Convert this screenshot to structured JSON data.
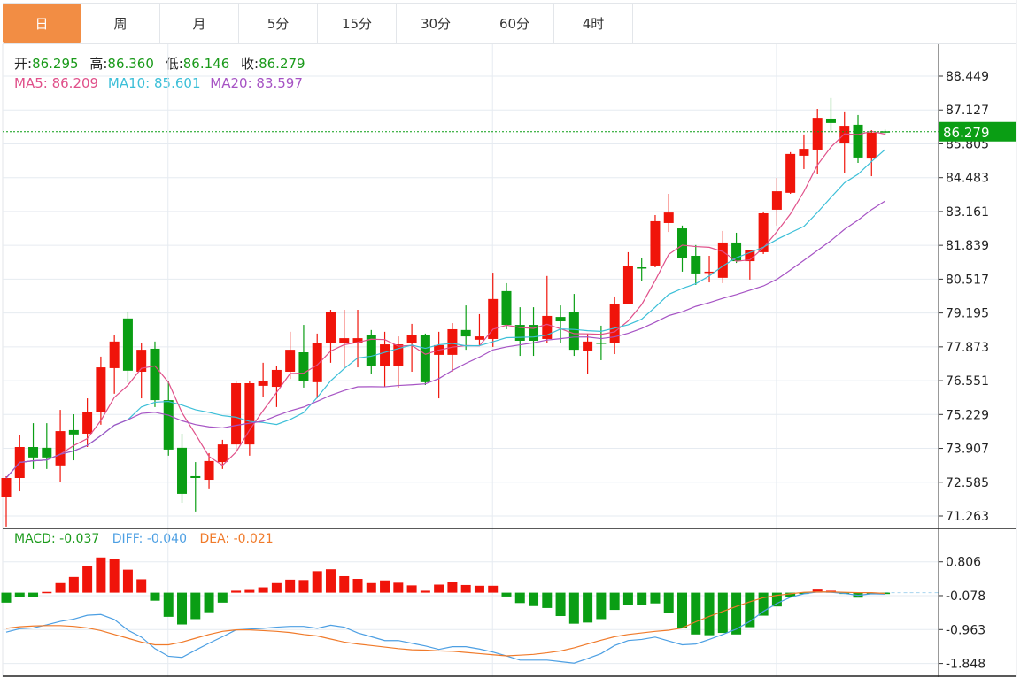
{
  "tabs": [
    {
      "label": "日",
      "active": true
    },
    {
      "label": "周",
      "active": false
    },
    {
      "label": "月",
      "active": false
    },
    {
      "label": "5分",
      "active": false
    },
    {
      "label": "15分",
      "active": false
    },
    {
      "label": "30分",
      "active": false
    },
    {
      "label": "60分",
      "active": false
    },
    {
      "label": "4时",
      "active": false
    }
  ],
  "ohlc_header": {
    "open_label": "开:",
    "open": "86.295",
    "high_label": "高:",
    "high": "86.360",
    "low_label": "低:",
    "low": "86.146",
    "close_label": "收:",
    "close": "86.279"
  },
  "ma_legend": {
    "ma5_label": "MA5:",
    "ma5": "86.209",
    "ma10_label": "MA10:",
    "ma10": "85.601",
    "ma20_label": "MA20:",
    "ma20": "83.597"
  },
  "macd_legend": {
    "macd_label": "MACD:",
    "macd": "-0.037",
    "diff_label": "DIFF:",
    "diff": "-0.040",
    "dea_label": "DEA:",
    "dea": "-0.021"
  },
  "colors": {
    "up": "#f0140a",
    "down": "#0a9e14",
    "ma5": "#e0508a",
    "ma10": "#3cbfd8",
    "ma20": "#a653c4",
    "diff": "#4c9fe3",
    "dea": "#f07a2a",
    "tab_active": "#f28d44",
    "last_price": "#0a9e14"
  },
  "chart_data": [
    {
      "type": "candlestick",
      "y_ticks": [
        "88.449",
        "87.127",
        "85.805",
        "84.483",
        "83.161",
        "81.839",
        "80.517",
        "79.195",
        "77.873",
        "76.551",
        "75.229",
        "73.907",
        "72.585",
        "71.263"
      ],
      "ylim": [
        71.263,
        88.449
      ],
      "grid": true,
      "last_price": "86.279",
      "moving_averages": [
        5,
        10,
        20
      ],
      "ohlc": [
        [
          71.99,
          72.82,
          70.85,
          72.75
        ],
        [
          72.75,
          74.41,
          72.23,
          73.96
        ],
        [
          73.96,
          74.89,
          73.1,
          73.55
        ],
        [
          73.93,
          74.89,
          73.1,
          73.55
        ],
        [
          73.24,
          75.41,
          72.58,
          74.58
        ],
        [
          74.62,
          75.24,
          73.44,
          74.45
        ],
        [
          74.48,
          75.86,
          73.96,
          75.31
        ],
        [
          75.31,
          77.49,
          74.83,
          77.07
        ],
        [
          77.04,
          78.35,
          76.04,
          78.08
        ],
        [
          78.98,
          79.25,
          76.49,
          76.94
        ],
        [
          76.9,
          78.01,
          75.86,
          77.76
        ],
        [
          77.8,
          78.08,
          75.52,
          75.79
        ],
        [
          75.79,
          76.55,
          73.62,
          73.86
        ],
        [
          73.93,
          74.48,
          71.78,
          72.13
        ],
        [
          72.82,
          73.37,
          71.44,
          72.75
        ],
        [
          72.68,
          73.72,
          72.34,
          73.41
        ],
        [
          73.37,
          74.24,
          73.1,
          74.06
        ],
        [
          74.06,
          76.55,
          73.79,
          76.45
        ],
        [
          74.06,
          76.55,
          73.62,
          76.45
        ],
        [
          76.35,
          77.25,
          75.93,
          76.52
        ],
        [
          76.31,
          77.14,
          75.52,
          76.97
        ],
        [
          76.9,
          78.46,
          76.62,
          77.76
        ],
        [
          77.66,
          78.73,
          76.28,
          76.52
        ],
        [
          76.49,
          78.39,
          75.86,
          78.04
        ],
        [
          78.04,
          79.32,
          77.25,
          79.25
        ],
        [
          78.04,
          79.32,
          77.07,
          78.21
        ],
        [
          78.04,
          79.32,
          77.07,
          78.21
        ],
        [
          78.35,
          78.53,
          76.83,
          77.14
        ],
        [
          77.11,
          78.46,
          76.31,
          77.97
        ],
        [
          77.11,
          78.28,
          76.28,
          77.97
        ],
        [
          78.01,
          78.77,
          76.9,
          78.35
        ],
        [
          78.32,
          78.39,
          76.38,
          76.49
        ],
        [
          77.56,
          78.46,
          75.86,
          77.94
        ],
        [
          77.56,
          78.8,
          76.9,
          78.56
        ],
        [
          78.53,
          79.49,
          77.76,
          78.28
        ],
        [
          78.15,
          79.15,
          77.94,
          78.28
        ],
        [
          78.18,
          80.77,
          77.87,
          79.74
        ],
        [
          80.05,
          80.36,
          78.56,
          78.73
        ],
        [
          78.73,
          79.42,
          77.52,
          78.11
        ],
        [
          78.73,
          79.42,
          77.52,
          78.11
        ],
        [
          78.18,
          80.64,
          78.01,
          79.08
        ],
        [
          79.04,
          79.49,
          78.04,
          78.87
        ],
        [
          79.25,
          79.94,
          77.52,
          77.76
        ],
        [
          77.73,
          78.39,
          76.8,
          78.08
        ],
        [
          78.04,
          78.7,
          77.35,
          78.01
        ],
        [
          78.01,
          79.84,
          77.59,
          79.56
        ],
        [
          79.56,
          81.57,
          79.56,
          81.02
        ],
        [
          80.98,
          81.36,
          80.46,
          80.95
        ],
        [
          81.05,
          83.02,
          80.98,
          82.78
        ],
        [
          82.71,
          83.85,
          82.36,
          83.12
        ],
        [
          82.5,
          82.61,
          80.81,
          81.36
        ],
        [
          81.43,
          81.85,
          80.29,
          80.74
        ],
        [
          80.77,
          81.43,
          80.39,
          80.81
        ],
        [
          80.57,
          82.4,
          80.36,
          81.95
        ],
        [
          81.95,
          82.33,
          81.15,
          81.22
        ],
        [
          81.22,
          81.67,
          80.5,
          81.64
        ],
        [
          81.57,
          83.16,
          81.5,
          83.09
        ],
        [
          83.23,
          84.47,
          82.61,
          83.95
        ],
        [
          83.89,
          85.48,
          83.85,
          85.41
        ],
        [
          85.34,
          86.17,
          84.82,
          85.61
        ],
        [
          85.58,
          87.17,
          84.61,
          86.82
        ],
        [
          86.79,
          87.59,
          86.31,
          86.62
        ],
        [
          85.82,
          87.07,
          84.65,
          86.51
        ],
        [
          86.55,
          86.93,
          85.06,
          85.27
        ],
        [
          85.23,
          86.34,
          84.54,
          86.24
        ],
        [
          86.295,
          86.36,
          86.146,
          86.279
        ]
      ]
    },
    {
      "type": "macd",
      "y_ticks": [
        "0.806",
        "-0.078",
        "-0.963",
        "-1.848"
      ],
      "histogram": [
        -0.26,
        -0.12,
        -0.12,
        0.02,
        0.25,
        0.41,
        0.69,
        0.92,
        0.89,
        0.6,
        0.35,
        -0.21,
        -0.63,
        -0.83,
        -0.69,
        -0.51,
        -0.26,
        0.05,
        0.07,
        0.14,
        0.25,
        0.34,
        0.33,
        0.56,
        0.61,
        0.43,
        0.36,
        0.25,
        0.32,
        0.26,
        0.19,
        0.05,
        0.21,
        0.28,
        0.2,
        0.18,
        0.18,
        -0.1,
        -0.27,
        -0.35,
        -0.4,
        -0.61,
        -0.81,
        -0.78,
        -0.69,
        -0.45,
        -0.31,
        -0.33,
        -0.28,
        -0.53,
        -0.92,
        -1.09,
        -1.11,
        -1.05,
        -1.09,
        -0.9,
        -0.6,
        -0.36,
        -0.12,
        -0.03,
        0.08,
        0.05,
        -0.01,
        -0.13,
        -0.03,
        -0.037
      ],
      "diff": [
        -1.03,
        -0.94,
        -0.92,
        -0.84,
        -0.75,
        -0.69,
        -0.59,
        -0.57,
        -0.7,
        -0.98,
        -1.16,
        -1.46,
        -1.66,
        -1.69,
        -1.5,
        -1.32,
        -1.15,
        -0.97,
        -0.95,
        -0.93,
        -0.9,
        -0.88,
        -0.88,
        -0.93,
        -0.85,
        -0.9,
        -1.05,
        -1.15,
        -1.25,
        -1.25,
        -1.32,
        -1.39,
        -1.48,
        -1.41,
        -1.41,
        -1.47,
        -1.55,
        -1.65,
        -1.76,
        -1.76,
        -1.76,
        -1.8,
        -1.84,
        -1.72,
        -1.59,
        -1.38,
        -1.25,
        -1.22,
        -1.16,
        -1.26,
        -1.36,
        -1.34,
        -1.22,
        -1.09,
        -0.95,
        -0.75,
        -0.49,
        -0.28,
        -0.12,
        -0.03,
        0.02,
        0.01,
        -0.02,
        -0.07,
        -0.03,
        -0.04
      ],
      "dea": [
        -0.93,
        -0.89,
        -0.87,
        -0.86,
        -0.86,
        -0.88,
        -0.92,
        -0.99,
        -1.09,
        -1.19,
        -1.29,
        -1.36,
        -1.36,
        -1.29,
        -1.19,
        -1.09,
        -1.01,
        -0.97,
        -0.97,
        -0.99,
        -1.01,
        -1.04,
        -1.09,
        -1.13,
        -1.21,
        -1.29,
        -1.34,
        -1.38,
        -1.42,
        -1.46,
        -1.49,
        -1.5,
        -1.52,
        -1.53,
        -1.56,
        -1.59,
        -1.62,
        -1.65,
        -1.63,
        -1.61,
        -1.57,
        -1.52,
        -1.44,
        -1.34,
        -1.24,
        -1.15,
        -1.09,
        -1.05,
        -1.01,
        -0.98,
        -0.92,
        -0.76,
        -0.62,
        -0.49,
        -0.36,
        -0.24,
        -0.13,
        -0.07,
        -0.03,
        0.01,
        0.02,
        0.02,
        0.01,
        0.0,
        0.0,
        -0.02
      ]
    }
  ]
}
